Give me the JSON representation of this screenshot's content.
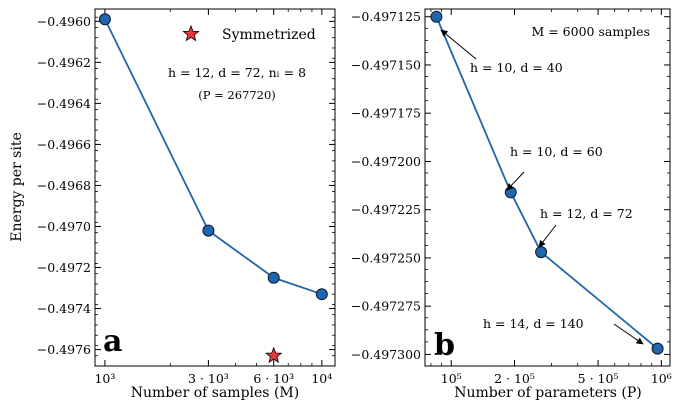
{
  "chart_data": [
    {
      "type": "line",
      "panel_label": "a",
      "xlabel": "Number of samples (M)",
      "ylabel": "Energy per site",
      "xscale": "log",
      "xlim": [
        900,
        11500
      ],
      "ylim": [
        -0.49768,
        -0.49594
      ],
      "xticks": [
        {
          "value": 1000,
          "label": "10³"
        },
        {
          "value": 3000,
          "label": "3 · 10³"
        },
        {
          "value": 6000,
          "label": "6 · 10³"
        },
        {
          "value": 10000,
          "label": "10⁴"
        }
      ],
      "yticks": [
        {
          "value": -0.496,
          "label": "−0.4960"
        },
        {
          "value": -0.4962,
          "label": "−0.4962"
        },
        {
          "value": -0.4964,
          "label": "−0.4964"
        },
        {
          "value": -0.4966,
          "label": "−0.4966"
        },
        {
          "value": -0.4968,
          "label": "−0.4968"
        },
        {
          "value": -0.497,
          "label": "−0.4970"
        },
        {
          "value": -0.4972,
          "label": "−0.4972"
        },
        {
          "value": -0.4974,
          "label": "−0.4974"
        },
        {
          "value": -0.4976,
          "label": "−0.4976"
        }
      ],
      "series": [
        {
          "x": [
            1000,
            3000,
            6000,
            10000
          ],
          "y": [
            -0.49599,
            -0.49702,
            -0.49725,
            -0.49733
          ],
          "color": "#2166ac",
          "marker": "circle"
        },
        {
          "name": "Symmetrized",
          "x": [
            6000
          ],
          "y": [
            -0.49763
          ],
          "color": "#e83a3a",
          "marker": "star"
        }
      ],
      "annotations": [
        {
          "text": "h = 12, d = 72, nₗ = 8"
        },
        {
          "text": "(P = 267720)"
        }
      ],
      "legend": "top-right"
    },
    {
      "type": "line",
      "panel_label": "b",
      "xlabel": "Number of parameters (P)",
      "xscale": "log",
      "xlim": [
        75000,
        1100000
      ],
      "ylim": [
        -0.497306,
        -0.497121
      ],
      "xticks": [
        {
          "value": 100000,
          "label": "10⁵"
        },
        {
          "value": 200000,
          "label": "2 · 10⁵"
        },
        {
          "value": 500000,
          "label": "5 · 10⁵"
        },
        {
          "value": 1000000,
          "label": "10⁶"
        }
      ],
      "yticks": [
        {
          "value": -0.497125,
          "label": "−0.497125"
        },
        {
          "value": -0.49715,
          "label": "−0.497150"
        },
        {
          "value": -0.497175,
          "label": "−0.497175"
        },
        {
          "value": -0.4972,
          "label": "−0.497200"
        },
        {
          "value": -0.497225,
          "label": "−0.497225"
        },
        {
          "value": -0.49725,
          "label": "−0.497250"
        },
        {
          "value": -0.497275,
          "label": "−0.497275"
        },
        {
          "value": -0.4973,
          "label": "−0.497300"
        }
      ],
      "series": [
        {
          "x": [
            85000,
            192000,
            267720,
            960000
          ],
          "y": [
            -0.497125,
            -0.497216,
            -0.497247,
            -0.497297
          ],
          "color": "#2166ac",
          "marker": "circle"
        }
      ],
      "point_labels": [
        "h = 10, d = 40",
        "h = 10, d = 60",
        "h = 12, d = 72",
        "h = 14, d = 140"
      ],
      "annotations": [
        {
          "text": "M = 6000 samples"
        }
      ]
    }
  ]
}
